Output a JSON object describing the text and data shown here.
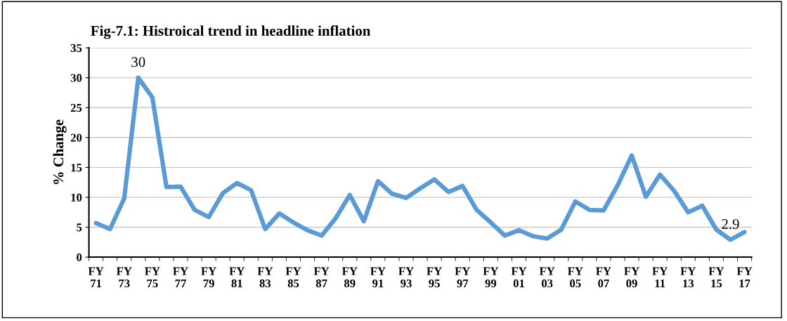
{
  "chart_data": {
    "type": "line",
    "title": "Fig-7.1: Histroical trend in headline inflation",
    "ylabel": "% Change",
    "categories": [
      "FY\n71",
      null,
      "FY\n73",
      null,
      "FY\n75",
      null,
      "FY\n77",
      null,
      "FY\n79",
      null,
      "FY\n81",
      null,
      "FY\n83",
      null,
      "FY\n85",
      null,
      "FY\n87",
      null,
      "FY\n89",
      null,
      "FY\n91",
      null,
      "FY\n93",
      null,
      "FY\n95",
      null,
      "FY\n97",
      null,
      "FY\n99",
      null,
      "FY\n01",
      null,
      "FY\n03",
      null,
      "FY\n05",
      null,
      "FY\n07",
      null,
      "FY\n09",
      null,
      "FY\n11",
      null,
      "FY\n13",
      null,
      "FY\n15",
      null,
      "FY\n17"
    ],
    "series": [
      {
        "color": "#5b9bd5",
        "values": [
          5.7,
          4.7,
          9.8,
          30,
          26.7,
          11.7,
          11.8,
          7.9,
          6.7,
          10.7,
          12.4,
          11.2,
          4.7,
          7.3,
          5.8,
          4.5,
          3.6,
          6.5,
          10.4,
          6.0,
          12.7,
          10.6,
          9.9,
          11.5,
          13.0,
          10.9,
          11.9,
          7.9,
          5.8,
          3.6,
          4.5,
          3.5,
          3.1,
          4.6,
          9.3,
          7.9,
          7.8,
          12.0,
          17.0,
          10.1,
          13.8,
          11.1,
          7.5,
          8.6,
          4.6,
          2.9,
          4.2
        ],
        "value_labels": [
          null,
          null,
          null,
          "30",
          null,
          null,
          null,
          null,
          null,
          null,
          null,
          null,
          null,
          null,
          null,
          null,
          null,
          null,
          null,
          null,
          null,
          null,
          null,
          null,
          null,
          null,
          null,
          null,
          null,
          null,
          null,
          null,
          null,
          null,
          null,
          null,
          null,
          null,
          null,
          null,
          null,
          null,
          null,
          null,
          null,
          "2.9",
          null
        ]
      }
    ],
    "ylim": [
      0,
      35
    ],
    "yticks": [
      0,
      5,
      10,
      15,
      20,
      25,
      30,
      35
    ],
    "grid": "y",
    "marker": "none",
    "line_style": "solid"
  }
}
